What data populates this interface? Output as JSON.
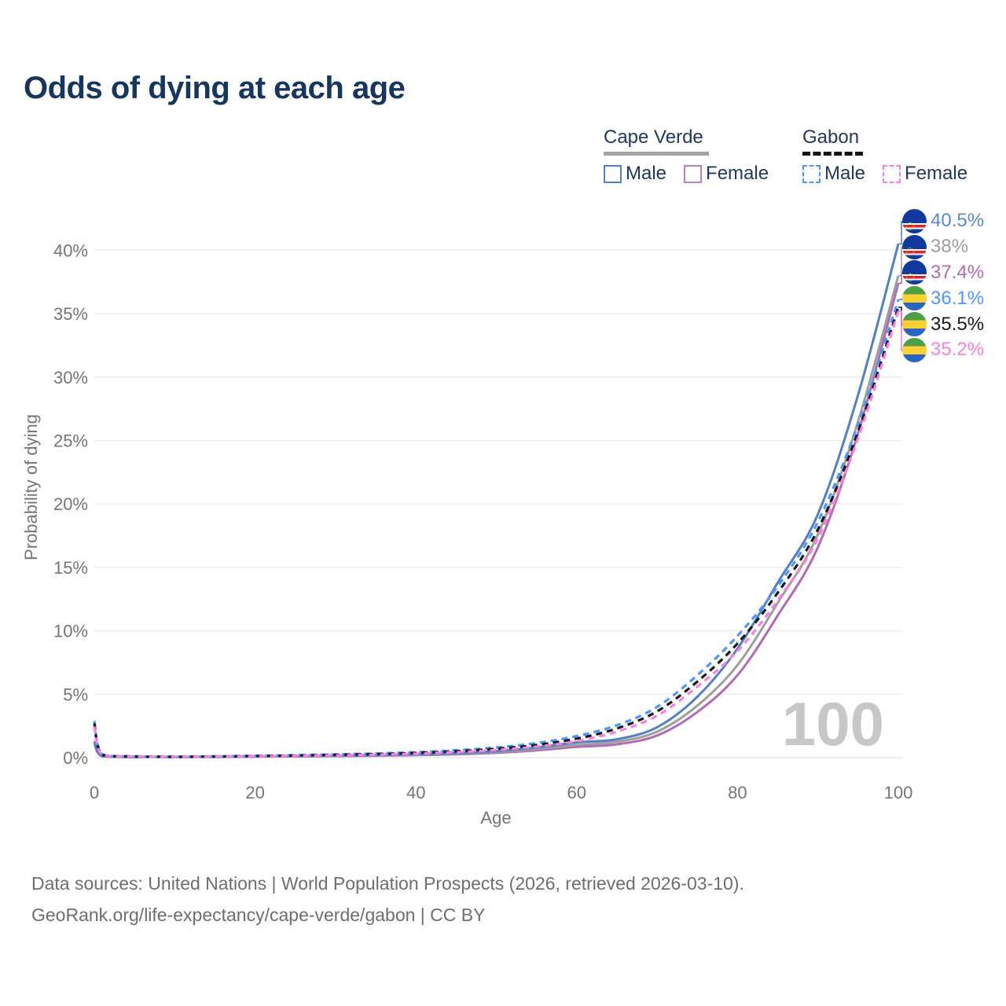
{
  "title": "Odds of dying at each age",
  "legend": {
    "groups": [
      {
        "name": "Cape Verde",
        "line_style": "solid",
        "underline_color": "#a3a3a3",
        "items": [
          {
            "label": "Male",
            "color": "#5181c2"
          },
          {
            "label": "Female",
            "color": "#b583bd"
          }
        ]
      },
      {
        "name": "Gabon",
        "line_style": "dashed",
        "underline_color": "#141414",
        "items": [
          {
            "label": "Male",
            "color": "#4d97fb"
          },
          {
            "label": "Female",
            "color": "#fb7ee0"
          }
        ]
      }
    ]
  },
  "end_labels": [
    {
      "text": "40.5%",
      "color": "#5b8ac5",
      "flag": "cape-verde"
    },
    {
      "text": "38%",
      "color": "#9e9e9e",
      "flag": "cape-verde"
    },
    {
      "text": "37.4%",
      "color": "#b16bb4",
      "flag": "cape-verde"
    },
    {
      "text": "36.1%",
      "color": "#4d97fb",
      "flag": "gabon"
    },
    {
      "text": "35.5%",
      "color": "#1a1a1a",
      "flag": "gabon"
    },
    {
      "text": "35.2%",
      "color": "#fb7ee0",
      "flag": "gabon"
    }
  ],
  "watermark": "100",
  "sources": {
    "line1": "Data sources: United Nations | World Population Prospects (2026, retrieved 2026-03-10).",
    "line2": "GeoRank.org/life-expectancy/cape-verde/gabon | CC BY"
  },
  "chart_data": {
    "type": "line",
    "title": "Odds of dying at each age",
    "xlabel": "Age",
    "ylabel": "Probability of dying",
    "xlim": [
      0,
      100
    ],
    "ylim": [
      0,
      42
    ],
    "grid": true,
    "legend_position": "top-right",
    "x_ticks": [
      0,
      20,
      40,
      60,
      80,
      100
    ],
    "y_tick_values": [
      0,
      5,
      10,
      15,
      20,
      25,
      30,
      35,
      40
    ],
    "y_tick_labels": [
      "0%",
      "5%",
      "10%",
      "15%",
      "20%",
      "25%",
      "30%",
      "35%",
      "40%"
    ],
    "x": [
      0,
      1,
      5,
      10,
      15,
      20,
      25,
      30,
      35,
      40,
      45,
      50,
      55,
      60,
      65,
      70,
      75,
      80,
      85,
      90,
      95,
      100
    ],
    "series": [
      {
        "name": "Cape Verde Male",
        "color": "#5181c2",
        "dashed": false,
        "end_label": "40.5%",
        "values": [
          1.3,
          0.12,
          0.05,
          0.04,
          0.06,
          0.1,
          0.13,
          0.16,
          0.2,
          0.26,
          0.36,
          0.52,
          0.8,
          1.2,
          1.45,
          2.4,
          4.8,
          8.6,
          13.8,
          19.2,
          28.6,
          40.5
        ]
      },
      {
        "name": "Cape Verde Both sexes",
        "color": "#9e9e9e",
        "dashed": false,
        "end_label": "38%",
        "values": [
          1.2,
          0.11,
          0.05,
          0.04,
          0.06,
          0.09,
          0.11,
          0.14,
          0.17,
          0.22,
          0.31,
          0.45,
          0.68,
          1.0,
          1.25,
          2.05,
          4.1,
          7.3,
          12.2,
          17.6,
          26.5,
          38.0
        ]
      },
      {
        "name": "Cape Verde Female",
        "color": "#b16bb4",
        "dashed": false,
        "end_label": "37.4%",
        "values": [
          1.1,
          0.1,
          0.04,
          0.04,
          0.05,
          0.08,
          0.1,
          0.12,
          0.15,
          0.19,
          0.26,
          0.38,
          0.57,
          0.85,
          1.05,
          1.75,
          3.6,
          6.5,
          11.2,
          16.6,
          25.6,
          37.4
        ]
      },
      {
        "name": "Gabon Male",
        "color": "#4d97fb",
        "dashed": true,
        "end_label": "36.1%",
        "values": [
          2.9,
          0.25,
          0.1,
          0.08,
          0.1,
          0.15,
          0.2,
          0.26,
          0.33,
          0.43,
          0.58,
          0.8,
          1.15,
          1.7,
          2.55,
          4.0,
          6.5,
          9.6,
          13.5,
          18.6,
          26.3,
          36.1
        ]
      },
      {
        "name": "Gabon Both sexes",
        "color": "#1a1a1a",
        "dashed": true,
        "end_label": "35.5%",
        "values": [
          2.7,
          0.22,
          0.09,
          0.07,
          0.09,
          0.13,
          0.17,
          0.22,
          0.28,
          0.37,
          0.5,
          0.7,
          1.0,
          1.5,
          2.3,
          3.65,
          6.0,
          9.0,
          13.0,
          18.0,
          25.7,
          35.5
        ]
      },
      {
        "name": "Gabon Female",
        "color": "#fb7ee0",
        "dashed": true,
        "end_label": "35.2%",
        "values": [
          2.45,
          0.2,
          0.08,
          0.06,
          0.08,
          0.11,
          0.14,
          0.18,
          0.23,
          0.31,
          0.43,
          0.6,
          0.87,
          1.3,
          2.05,
          3.3,
          5.6,
          8.4,
          12.4,
          17.3,
          25.2,
          35.2
        ]
      }
    ]
  }
}
